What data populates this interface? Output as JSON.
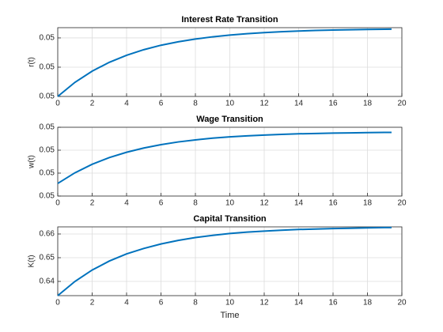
{
  "chart_data": [
    {
      "type": "line",
      "title": "Interest Rate Transition",
      "ylabel": "r(t)",
      "x": [
        0,
        1,
        2,
        3,
        4,
        5,
        6,
        7,
        8,
        9,
        10,
        11,
        12,
        13,
        14,
        15,
        16,
        17,
        18,
        19,
        19.4
      ],
      "values": [
        0.046,
        0.04793,
        0.04946,
        0.05067,
        0.05163,
        0.05239,
        0.053,
        0.05347,
        0.05385,
        0.05415,
        0.05439,
        0.05458,
        0.05473,
        0.05485,
        0.05494,
        0.05502,
        0.05507,
        0.05512,
        0.05516,
        0.05519,
        0.0552
      ],
      "color": "#0072bd",
      "xlim": [
        0,
        20
      ],
      "xticks": [
        0,
        2,
        4,
        6,
        8,
        10,
        12,
        14,
        16,
        18,
        20
      ],
      "ylim": [
        0.046,
        0.0554
      ],
      "yticks": [
        {
          "value": 0.046,
          "label": "0.05"
        },
        {
          "value": 0.05,
          "label": "0.05"
        },
        {
          "value": 0.054,
          "label": "0.05"
        }
      ],
      "grid": true
    },
    {
      "type": "line",
      "title": "Wage Transition",
      "ylabel": "w(t)",
      "x": [
        0,
        1,
        2,
        3,
        4,
        5,
        6,
        7,
        8,
        9,
        10,
        11,
        12,
        13,
        14,
        15,
        16,
        17,
        18,
        19,
        19.4
      ],
      "values": [
        0.0481,
        0.04903,
        0.04977,
        0.05036,
        0.05082,
        0.05119,
        0.05148,
        0.05172,
        0.0519,
        0.05205,
        0.05216,
        0.05225,
        0.05232,
        0.05238,
        0.05243,
        0.05246,
        0.05249,
        0.05251,
        0.05253,
        0.05255,
        0.05255
      ],
      "color": "#0072bd",
      "xlim": [
        0,
        20
      ],
      "xticks": [
        0,
        2,
        4,
        6,
        8,
        10,
        12,
        14,
        16,
        18,
        20
      ],
      "ylim": [
        0.047,
        0.053
      ],
      "yticks": [
        {
          "value": 0.047,
          "label": "0.05"
        },
        {
          "value": 0.049,
          "label": "0.05"
        },
        {
          "value": 0.051,
          "label": "0.05"
        },
        {
          "value": 0.053,
          "label": "0.05"
        }
      ],
      "grid": true
    },
    {
      "type": "line",
      "title": "Capital Transition",
      "ylabel": "K(t)",
      "xlabel": "Time",
      "x": [
        0,
        1,
        2,
        3,
        4,
        5,
        6,
        7,
        8,
        9,
        10,
        11,
        12,
        13,
        14,
        15,
        16,
        17,
        18,
        19,
        19.4
      ],
      "values": [
        0.634,
        0.64,
        0.6448,
        0.6486,
        0.6516,
        0.6539,
        0.6558,
        0.6573,
        0.6585,
        0.6594,
        0.6602,
        0.6608,
        0.6612,
        0.6616,
        0.6619,
        0.6621,
        0.6623,
        0.6624,
        0.6626,
        0.6627,
        0.6627
      ],
      "color": "#0072bd",
      "xlim": [
        0,
        20
      ],
      "xticks": [
        0,
        2,
        4,
        6,
        8,
        10,
        12,
        14,
        16,
        18,
        20
      ],
      "ylim": [
        0.634,
        0.663
      ],
      "yticks": [
        0.64,
        0.65,
        0.66
      ],
      "grid": true
    }
  ]
}
